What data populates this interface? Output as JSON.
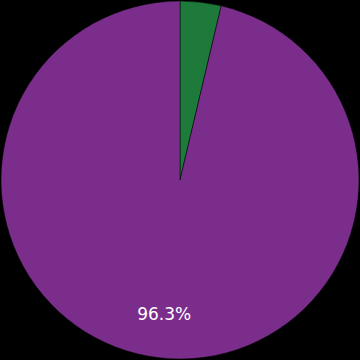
{
  "chart_data": {
    "type": "pie",
    "values": [
      3.7,
      96.3
    ],
    "colors": [
      "#1e7a3a",
      "#7b2d8c"
    ],
    "data_labels": true,
    "value_labels": [
      null,
      "96.3%"
    ]
  }
}
